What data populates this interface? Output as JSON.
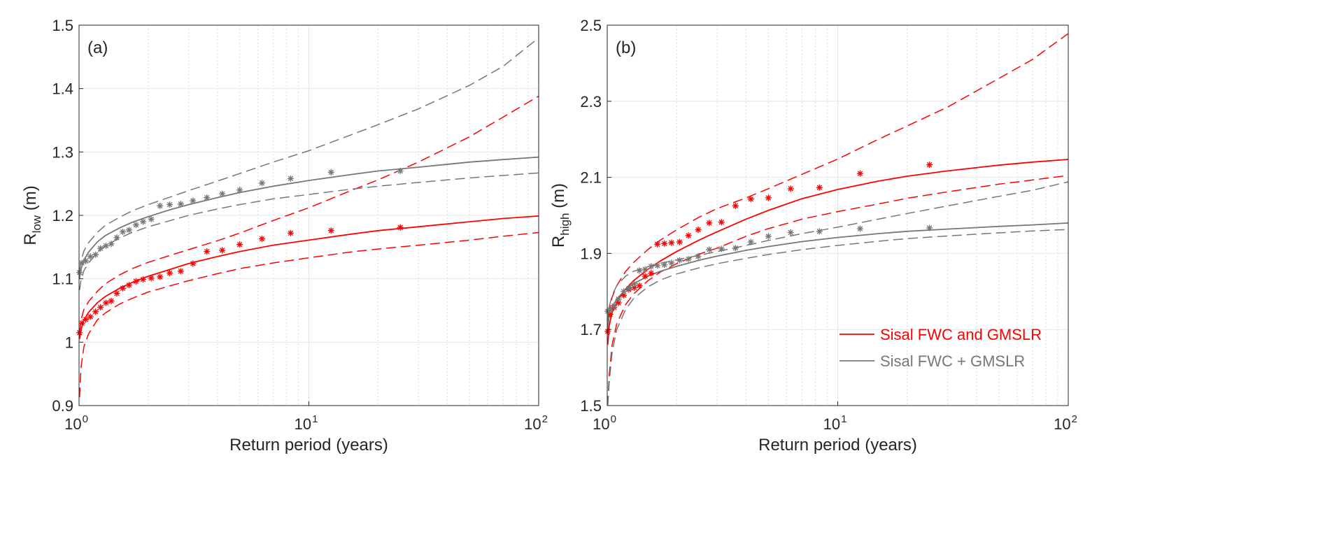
{
  "chart_data": [
    {
      "type": "line",
      "panel_label": "(a)",
      "xscale": "log",
      "xlim": [
        1,
        100
      ],
      "ylim": [
        0.9,
        1.5
      ],
      "xlabel": "Return period (years)",
      "ylabel": {
        "main": "R",
        "sub": "low",
        "unit": " (m)"
      },
      "yticks": [
        "0.9",
        "1",
        "1.1",
        "1.2",
        "1.3",
        "1.4",
        "1.5"
      ],
      "ytick_values": [
        0.9,
        1.0,
        1.1,
        1.2,
        1.3,
        1.4,
        1.5
      ],
      "xticks": [
        {
          "base": "10",
          "exp": "0",
          "value": 1
        },
        {
          "base": "10",
          "exp": "1",
          "value": 10
        },
        {
          "base": "10",
          "exp": "2",
          "value": 100
        }
      ],
      "grid": true,
      "series": [
        {
          "name": "Sisal FWC and GMSLR",
          "role": "fit",
          "color": "#ff0000",
          "x": [
            1.005,
            1.02,
            1.05,
            1.1,
            1.2,
            1.3,
            1.5,
            1.7,
            2,
            2.5,
            3,
            4,
            5,
            7,
            10,
            15,
            20,
            30,
            50,
            70,
            100
          ],
          "y": [
            1.005,
            1.02,
            1.035,
            1.047,
            1.062,
            1.072,
            1.085,
            1.094,
            1.104,
            1.115,
            1.124,
            1.135,
            1.143,
            1.153,
            1.161,
            1.17,
            1.176,
            1.182,
            1.19,
            1.195,
            1.199
          ]
        },
        {
          "name": "Sisal FWC and GMSLR upper CI",
          "role": "ci",
          "color": "#ff0000",
          "x": [
            1.005,
            1.02,
            1.05,
            1.1,
            1.2,
            1.3,
            1.5,
            1.7,
            2,
            2.5,
            3,
            4,
            5,
            7,
            10,
            15,
            20,
            30,
            50,
            70,
            100
          ],
          "y": [
            1.015,
            1.035,
            1.052,
            1.064,
            1.08,
            1.092,
            1.106,
            1.116,
            1.126,
            1.137,
            1.146,
            1.16,
            1.172,
            1.192,
            1.212,
            1.238,
            1.256,
            1.284,
            1.324,
            1.355,
            1.388
          ]
        },
        {
          "name": "Sisal FWC and GMSLR lower CI",
          "role": "ci",
          "color": "#ff0000",
          "x": [
            1.005,
            1.02,
            1.05,
            1.1,
            1.2,
            1.3,
            1.5,
            1.7,
            2,
            2.5,
            3,
            4,
            5,
            7,
            10,
            15,
            20,
            30,
            50,
            70,
            100
          ],
          "y": [
            0.913,
            0.96,
            0.993,
            1.013,
            1.035,
            1.046,
            1.06,
            1.069,
            1.079,
            1.089,
            1.097,
            1.108,
            1.116,
            1.125,
            1.133,
            1.142,
            1.147,
            1.153,
            1.161,
            1.167,
            1.173
          ]
        },
        {
          "name": "Sisal FWC + GMSLR",
          "role": "fit",
          "color": "#777777",
          "x": [
            1.005,
            1.02,
            1.05,
            1.1,
            1.2,
            1.3,
            1.5,
            1.7,
            2,
            2.5,
            3,
            4,
            5,
            7,
            10,
            15,
            20,
            30,
            50,
            70,
            100
          ],
          "y": [
            1.1,
            1.115,
            1.13,
            1.142,
            1.158,
            1.168,
            1.18,
            1.189,
            1.198,
            1.209,
            1.217,
            1.228,
            1.236,
            1.246,
            1.255,
            1.264,
            1.27,
            1.276,
            1.284,
            1.288,
            1.292
          ]
        },
        {
          "name": "Sisal FWC + GMSLR upper CI",
          "role": "ci",
          "color": "#777777",
          "x": [
            1.005,
            1.02,
            1.05,
            1.1,
            1.2,
            1.3,
            1.5,
            1.7,
            2,
            2.5,
            3,
            4,
            5,
            7,
            10,
            15,
            20,
            30,
            50,
            70,
            100
          ],
          "y": [
            1.112,
            1.128,
            1.144,
            1.157,
            1.173,
            1.184,
            1.197,
            1.207,
            1.217,
            1.229,
            1.239,
            1.254,
            1.266,
            1.284,
            1.302,
            1.326,
            1.343,
            1.368,
            1.405,
            1.435,
            1.48
          ]
        },
        {
          "name": "Sisal FWC + GMSLR lower CI",
          "role": "ci",
          "color": "#777777",
          "x": [
            1.005,
            1.02,
            1.05,
            1.1,
            1.2,
            1.3,
            1.5,
            1.7,
            2,
            2.5,
            3,
            4,
            5,
            7,
            10,
            15,
            20,
            30,
            50,
            70,
            100
          ],
          "y": [
            1.082,
            1.098,
            1.113,
            1.125,
            1.141,
            1.152,
            1.164,
            1.173,
            1.182,
            1.192,
            1.2,
            1.21,
            1.217,
            1.226,
            1.233,
            1.241,
            1.246,
            1.252,
            1.259,
            1.263,
            1.267
          ]
        },
        {
          "name": "Sisal FWC and GMSLR observations",
          "role": "points",
          "color": "#ff0000",
          "x": [
            1.005,
            1.03,
            1.07,
            1.12,
            1.18,
            1.24,
            1.31,
            1.38,
            1.46,
            1.55,
            1.65,
            1.77,
            1.9,
            2.06,
            2.25,
            2.48,
            2.77,
            3.13,
            3.6,
            4.2,
            5.0,
            6.25,
            8.33,
            12.5,
            25
          ],
          "y": [
            1.015,
            1.03,
            1.036,
            1.04,
            1.048,
            1.055,
            1.062,
            1.065,
            1.077,
            1.085,
            1.09,
            1.096,
            1.099,
            1.101,
            1.103,
            1.109,
            1.112,
            1.124,
            1.143,
            1.145,
            1.154,
            1.163,
            1.172,
            1.176,
            1.181
          ]
        },
        {
          "name": "Sisal FWC + GMSLR observations",
          "role": "points",
          "color": "#777777",
          "x": [
            1.005,
            1.03,
            1.07,
            1.12,
            1.18,
            1.24,
            1.31,
            1.38,
            1.46,
            1.55,
            1.65,
            1.77,
            1.9,
            2.06,
            2.25,
            2.48,
            2.77,
            3.13,
            3.6,
            4.2,
            5.0,
            6.25,
            8.33,
            12.5,
            25
          ],
          "y": [
            1.11,
            1.125,
            1.128,
            1.135,
            1.138,
            1.148,
            1.152,
            1.155,
            1.165,
            1.174,
            1.177,
            1.185,
            1.19,
            1.194,
            1.215,
            1.217,
            1.218,
            1.223,
            1.228,
            1.234,
            1.24,
            1.251,
            1.258,
            1.268,
            1.27
          ]
        }
      ]
    },
    {
      "type": "line",
      "panel_label": "(b)",
      "xscale": "log",
      "xlim": [
        1,
        100
      ],
      "ylim": [
        1.5,
        2.5
      ],
      "xlabel": "Return period (years)",
      "ylabel": {
        "main": "R",
        "sub": "high",
        "unit": " (m)"
      },
      "yticks": [
        "1.5",
        "1.7",
        "1.9",
        "2.1",
        "2.3",
        "2.5"
      ],
      "ytick_values": [
        1.5,
        1.7,
        1.9,
        2.1,
        2.3,
        2.5
      ],
      "xticks": [
        {
          "base": "10",
          "exp": "0",
          "value": 1
        },
        {
          "base": "10",
          "exp": "1",
          "value": 10
        },
        {
          "base": "10",
          "exp": "2",
          "value": 100
        }
      ],
      "grid": true,
      "legend": {
        "placement": "bottom-right",
        "entries": [
          {
            "label": "Sisal FWC and GMSLR",
            "color": "#ff0000"
          },
          {
            "label": "Sisal FWC + GMSLR",
            "color": "#777777"
          }
        ]
      },
      "series": [
        {
          "name": "Sisal FWC and GMSLR",
          "role": "fit",
          "color": "#ff0000",
          "x": [
            1.005,
            1.02,
            1.05,
            1.1,
            1.2,
            1.3,
            1.5,
            1.7,
            2,
            2.5,
            3,
            4,
            5,
            7,
            10,
            15,
            20,
            30,
            50,
            70,
            100
          ],
          "y": [
            1.66,
            1.71,
            1.745,
            1.772,
            1.806,
            1.828,
            1.858,
            1.88,
            1.905,
            1.935,
            1.957,
            1.99,
            2.013,
            2.044,
            2.068,
            2.09,
            2.103,
            2.117,
            2.132,
            2.14,
            2.147
          ]
        },
        {
          "name": "Sisal FWC and GMSLR upper CI",
          "role": "ci",
          "color": "#ff0000",
          "x": [
            1.005,
            1.02,
            1.05,
            1.1,
            1.2,
            1.3,
            1.5,
            1.7,
            2,
            2.5,
            3,
            4,
            5,
            7,
            10,
            15,
            20,
            30,
            50,
            70,
            100
          ],
          "y": [
            1.7,
            1.75,
            1.785,
            1.815,
            1.852,
            1.876,
            1.91,
            1.935,
            1.962,
            1.995,
            2.018,
            2.046,
            2.07,
            2.108,
            2.148,
            2.2,
            2.235,
            2.285,
            2.36,
            2.41,
            2.478
          ]
        },
        {
          "name": "Sisal FWC and GMSLR lower CI",
          "role": "ci",
          "color": "#ff0000",
          "x": [
            1.005,
            1.02,
            1.05,
            1.1,
            1.2,
            1.3,
            1.5,
            1.7,
            2,
            2.5,
            3,
            4,
            5,
            7,
            10,
            15,
            20,
            30,
            50,
            70,
            100
          ],
          "y": [
            1.5,
            1.58,
            1.66,
            1.715,
            1.765,
            1.793,
            1.828,
            1.851,
            1.873,
            1.898,
            1.914,
            1.945,
            1.965,
            1.99,
            2.01,
            2.03,
            2.045,
            2.062,
            2.082,
            2.093,
            2.105
          ]
        },
        {
          "name": "Sisal FWC + GMSLR",
          "role": "fit",
          "color": "#777777",
          "x": [
            1.005,
            1.02,
            1.05,
            1.1,
            1.2,
            1.3,
            1.5,
            1.7,
            2,
            2.5,
            3,
            4,
            5,
            7,
            10,
            15,
            20,
            30,
            50,
            70,
            100
          ],
          "y": [
            1.7,
            1.735,
            1.76,
            1.78,
            1.805,
            1.82,
            1.84,
            1.853,
            1.866,
            1.882,
            1.893,
            1.908,
            1.918,
            1.931,
            1.942,
            1.952,
            1.958,
            1.964,
            1.971,
            1.975,
            1.98
          ]
        },
        {
          "name": "Sisal FWC + GMSLR upper CI",
          "role": "ci",
          "color": "#777777",
          "x": [
            1.005,
            1.02,
            1.05,
            1.1,
            1.2,
            1.3,
            1.5,
            1.7,
            2,
            2.5,
            3,
            4,
            5,
            7,
            10,
            15,
            20,
            30,
            50,
            70,
            100
          ],
          "y": [
            1.72,
            1.76,
            1.79,
            1.815,
            1.84,
            1.853,
            1.865,
            1.874,
            1.883,
            1.895,
            1.905,
            1.921,
            1.934,
            1.952,
            1.969,
            1.99,
            2.005,
            2.025,
            2.05,
            2.066,
            2.088
          ]
        },
        {
          "name": "Sisal FWC + GMSLR lower CI",
          "role": "ci",
          "color": "#777777",
          "x": [
            1.005,
            1.02,
            1.05,
            1.1,
            1.2,
            1.3,
            1.5,
            1.7,
            2,
            2.5,
            3,
            4,
            5,
            7,
            10,
            15,
            20,
            30,
            50,
            70,
            100
          ],
          "y": [
            1.5,
            1.56,
            1.64,
            1.7,
            1.752,
            1.781,
            1.812,
            1.83,
            1.846,
            1.862,
            1.873,
            1.887,
            1.897,
            1.91,
            1.921,
            1.932,
            1.939,
            1.946,
            1.954,
            1.959,
            1.963
          ]
        },
        {
          "name": "Sisal FWC and GMSLR observations",
          "role": "points",
          "color": "#ff0000",
          "x": [
            1.005,
            1.03,
            1.07,
            1.12,
            1.18,
            1.24,
            1.31,
            1.38,
            1.46,
            1.55,
            1.65,
            1.77,
            1.9,
            2.06,
            2.25,
            2.48,
            2.77,
            3.13,
            3.6,
            4.2,
            5.0,
            6.25,
            8.33,
            12.5,
            25
          ],
          "y": [
            1.695,
            1.74,
            1.758,
            1.77,
            1.79,
            1.805,
            1.81,
            1.815,
            1.84,
            1.848,
            1.924,
            1.926,
            1.928,
            1.93,
            1.947,
            1.962,
            1.98,
            1.982,
            2.025,
            2.043,
            2.046,
            2.07,
            2.073,
            2.11,
            2.133
          ]
        },
        {
          "name": "Sisal FWC + GMSLR observations",
          "role": "points",
          "color": "#777777",
          "x": [
            1.005,
            1.03,
            1.07,
            1.12,
            1.18,
            1.24,
            1.31,
            1.38,
            1.46,
            1.55,
            1.65,
            1.77,
            1.9,
            2.06,
            2.25,
            2.48,
            2.77,
            3.13,
            3.6,
            4.2,
            5.0,
            6.25,
            8.33,
            12.5,
            25
          ],
          "y": [
            1.748,
            1.752,
            1.762,
            1.78,
            1.8,
            1.808,
            1.82,
            1.855,
            1.858,
            1.866,
            1.868,
            1.87,
            1.875,
            1.882,
            1.885,
            1.892,
            1.91,
            1.912,
            1.914,
            1.93,
            1.945,
            1.955,
            1.958,
            1.965,
            1.967
          ]
        }
      ]
    }
  ]
}
